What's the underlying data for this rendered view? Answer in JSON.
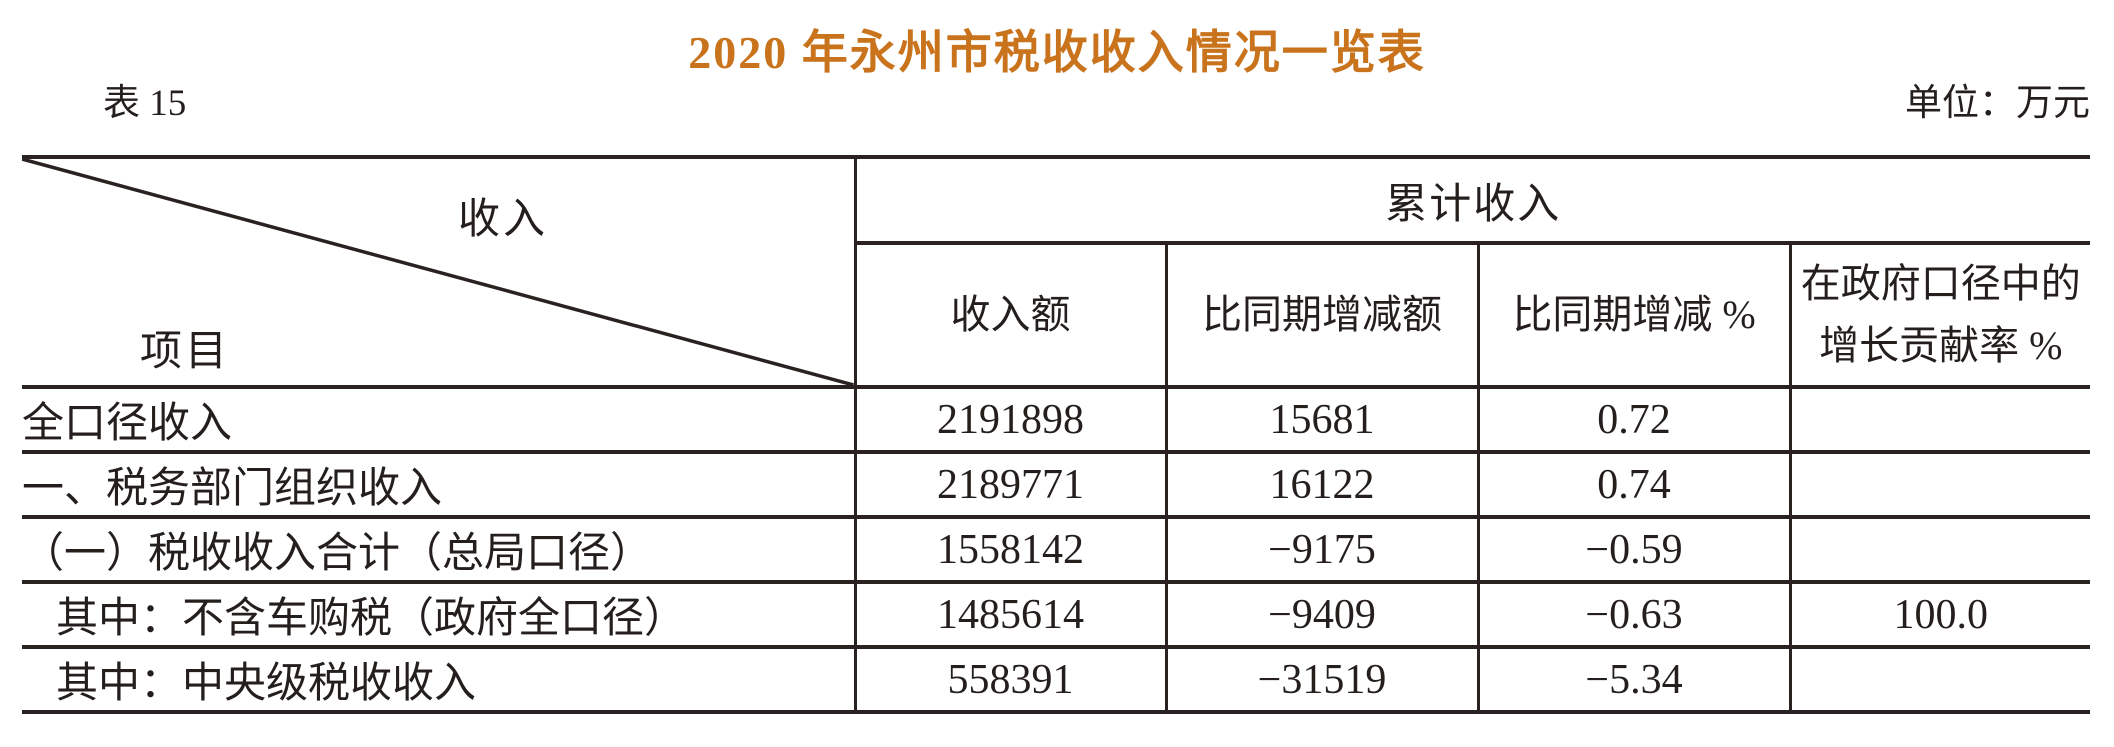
{
  "title": "2020 年永州市税收收入情况一览表",
  "table_number": "表 15",
  "unit": "单位：万元",
  "colors": {
    "title_accent": "#c9731d",
    "text": "#241f1d",
    "line": "#2a2220"
  },
  "table": {
    "corner": {
      "top_label": "收入",
      "bottom_label": "项目"
    },
    "group_header": "累计收入",
    "columns": [
      "收入额",
      "比同期增减额",
      "比同期增减 %",
      "在政府口径中的\n增长贡献率 %"
    ],
    "rows": [
      {
        "label": "全口径收入",
        "amount": "2191898",
        "delta": "15681",
        "pct": "0.72",
        "contribution": "",
        "indent": 0
      },
      {
        "label": "一、税务部门组织收入",
        "amount": "2189771",
        "delta": "16122",
        "pct": "0.74",
        "contribution": "",
        "indent": 0
      },
      {
        "label": "（一）税收收入合计（总局口径）",
        "amount": "1558142",
        "delta": "−9175",
        "pct": "−0.59",
        "contribution": "",
        "indent": 0
      },
      {
        "label": "其中：不含车购税（政府全口径）",
        "amount": "1485614",
        "delta": "−9409",
        "pct": "−0.63",
        "contribution": "100.0",
        "indent": 1
      },
      {
        "label": "其中：中央级税收收入",
        "amount": "558391",
        "delta": "−31519",
        "pct": "−5.34",
        "contribution": "",
        "indent": 1
      }
    ]
  }
}
